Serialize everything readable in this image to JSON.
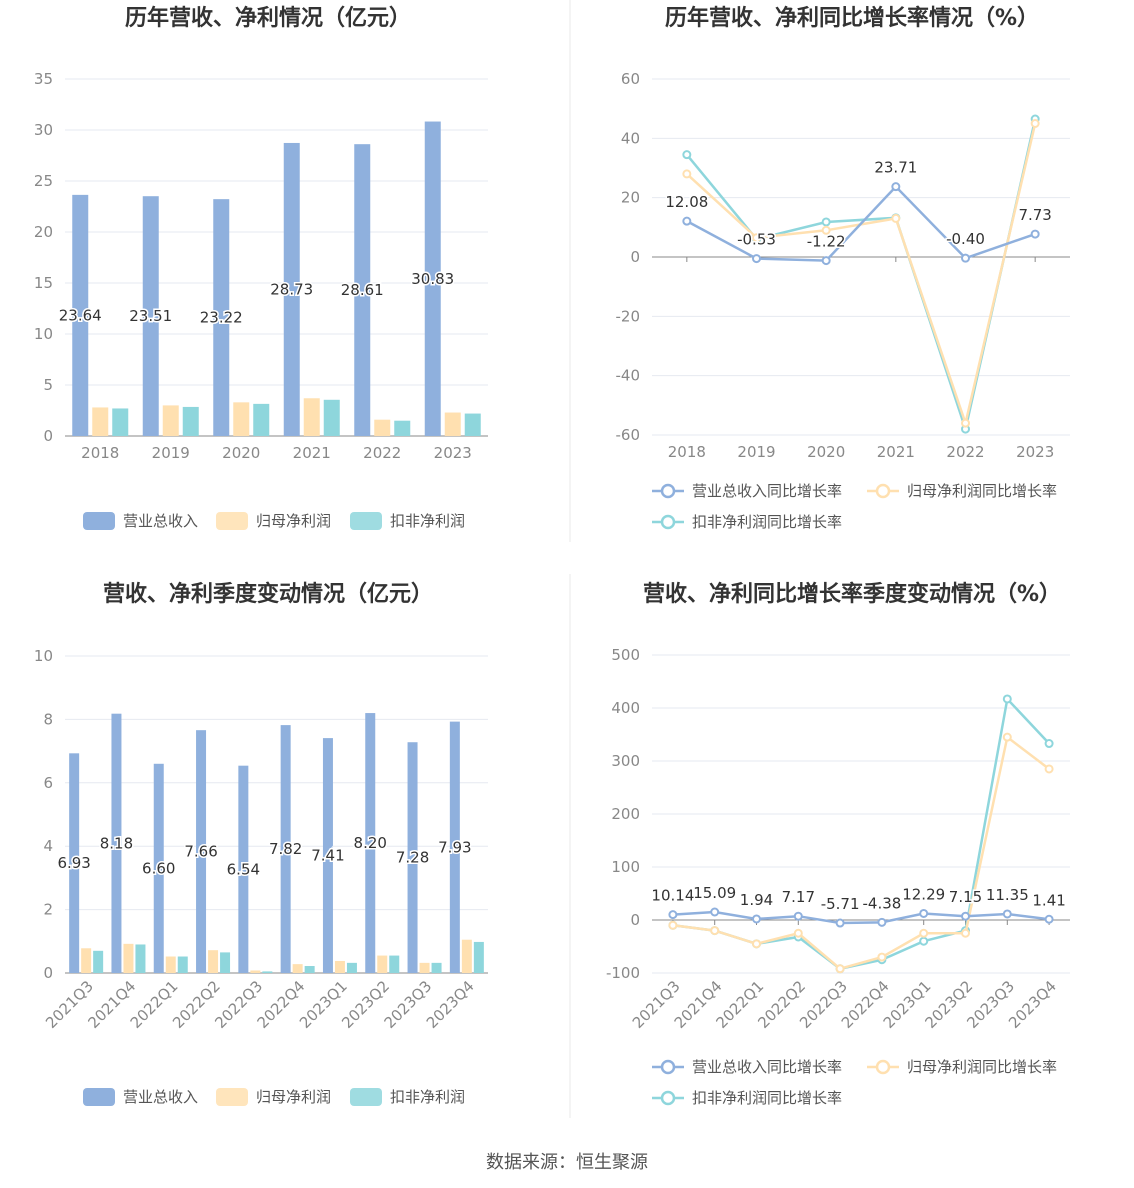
{
  "colors": {
    "revenue": "#8fb0dd",
    "net_profit": "#ffe0b0",
    "deducted_profit": "#8ed6dc",
    "grid": "#e6e9f0",
    "axis": "#888888",
    "divider": "#e8e8e8"
  },
  "source": "数据来源：恒生聚源",
  "chart_data": [
    {
      "id": "annual-bar",
      "type": "bar",
      "title": "历年营收、净利情况（亿元）",
      "categories": [
        "2018",
        "2019",
        "2020",
        "2021",
        "2022",
        "2023"
      ],
      "ylim": [
        0,
        35
      ],
      "yticks": [
        0,
        5,
        10,
        15,
        20,
        25,
        30,
        35
      ],
      "grid": true,
      "legend_position": "bottom",
      "series": [
        {
          "name": "营业总收入",
          "values": [
            23.64,
            23.51,
            23.22,
            28.73,
            28.61,
            30.83
          ],
          "labels": [
            "23.64",
            "23.51",
            "23.22",
            "28.73",
            "28.61",
            "30.83"
          ]
        },
        {
          "name": "归母净利润",
          "values": [
            2.8,
            3.0,
            3.3,
            3.7,
            1.6,
            2.3
          ]
        },
        {
          "name": "扣非净利润",
          "values": [
            2.7,
            2.85,
            3.15,
            3.55,
            1.5,
            2.2
          ]
        }
      ]
    },
    {
      "id": "annual-line",
      "type": "line",
      "title": "历年营收、净利同比增长率情况（%）",
      "categories": [
        "2018",
        "2019",
        "2020",
        "2021",
        "2022",
        "2023"
      ],
      "ylim": [
        -60,
        60
      ],
      "yticks": [
        -60,
        -40,
        -20,
        0,
        20,
        40,
        60
      ],
      "grid": true,
      "legend_position": "bottom",
      "series": [
        {
          "name": "营业总收入同比增长率",
          "values": [
            12.08,
            -0.53,
            -1.22,
            23.71,
            -0.4,
            7.73
          ],
          "labels": [
            "12.08",
            "-0.53",
            "-1.22",
            "23.71",
            "-0.40",
            "7.73"
          ]
        },
        {
          "name": "归母净利润同比增长率",
          "values": [
            28,
            6.5,
            9,
            13,
            -56,
            45
          ]
        },
        {
          "name": "扣非净利润同比增长率",
          "values": [
            34.5,
            6,
            11.8,
            13.2,
            -58,
            46.5
          ]
        }
      ]
    },
    {
      "id": "quarter-bar",
      "type": "bar",
      "title": "营收、净利季度变动情况（亿元）",
      "categories": [
        "2021Q3",
        "2021Q4",
        "2022Q1",
        "2022Q2",
        "2022Q3",
        "2022Q4",
        "2023Q1",
        "2023Q2",
        "2023Q3",
        "2023Q4"
      ],
      "ylim": [
        0,
        10
      ],
      "yticks": [
        0,
        2,
        4,
        6,
        8,
        10
      ],
      "grid": true,
      "legend_position": "bottom",
      "series": [
        {
          "name": "营业总收入",
          "values": [
            6.93,
            8.18,
            6.6,
            7.66,
            6.54,
            7.82,
            7.41,
            8.2,
            7.28,
            7.93
          ],
          "labels": [
            "6.93",
            "8.18",
            "6.60",
            "7.66",
            "6.54",
            "7.82",
            "7.41",
            "8.20",
            "7.28",
            "7.93"
          ]
        },
        {
          "name": "归母净利润",
          "values": [
            0.78,
            0.92,
            0.52,
            0.72,
            0.08,
            0.28,
            0.38,
            0.55,
            0.32,
            1.05
          ]
        },
        {
          "name": "扣非净利润",
          "values": [
            0.7,
            0.9,
            0.52,
            0.65,
            0.05,
            0.22,
            0.32,
            0.55,
            0.32,
            0.98
          ]
        }
      ]
    },
    {
      "id": "quarter-line",
      "type": "line",
      "title": "营收、净利同比增长率季度变动情况（%）",
      "categories": [
        "2021Q3",
        "2021Q4",
        "2022Q1",
        "2022Q2",
        "2022Q3",
        "2022Q4",
        "2023Q1",
        "2023Q2",
        "2023Q3",
        "2023Q4"
      ],
      "ylim": [
        -100,
        500
      ],
      "yticks": [
        -100,
        0,
        100,
        200,
        300,
        400,
        500
      ],
      "grid": true,
      "legend_position": "bottom",
      "series": [
        {
          "name": "营业总收入同比增长率",
          "values": [
            10.14,
            15.09,
            1.94,
            7.17,
            -5.71,
            -4.38,
            12.29,
            7.15,
            11.35,
            1.41
          ],
          "labels": [
            "10.14",
            "15.09",
            "1.94",
            "7.17",
            "-5.71",
            "-4.38",
            "12.29",
            "7.15",
            "11.35",
            "1.41"
          ]
        },
        {
          "name": "归母净利润同比增长率",
          "values": [
            -10,
            -20,
            -45,
            -25,
            -92,
            -70,
            -25,
            -25,
            345,
            285
          ]
        },
        {
          "name": "扣非净利润同比增长率",
          "values": [
            -10,
            -20,
            -45,
            -32,
            -92,
            -75,
            -40,
            -20,
            417,
            333
          ]
        }
      ]
    }
  ]
}
